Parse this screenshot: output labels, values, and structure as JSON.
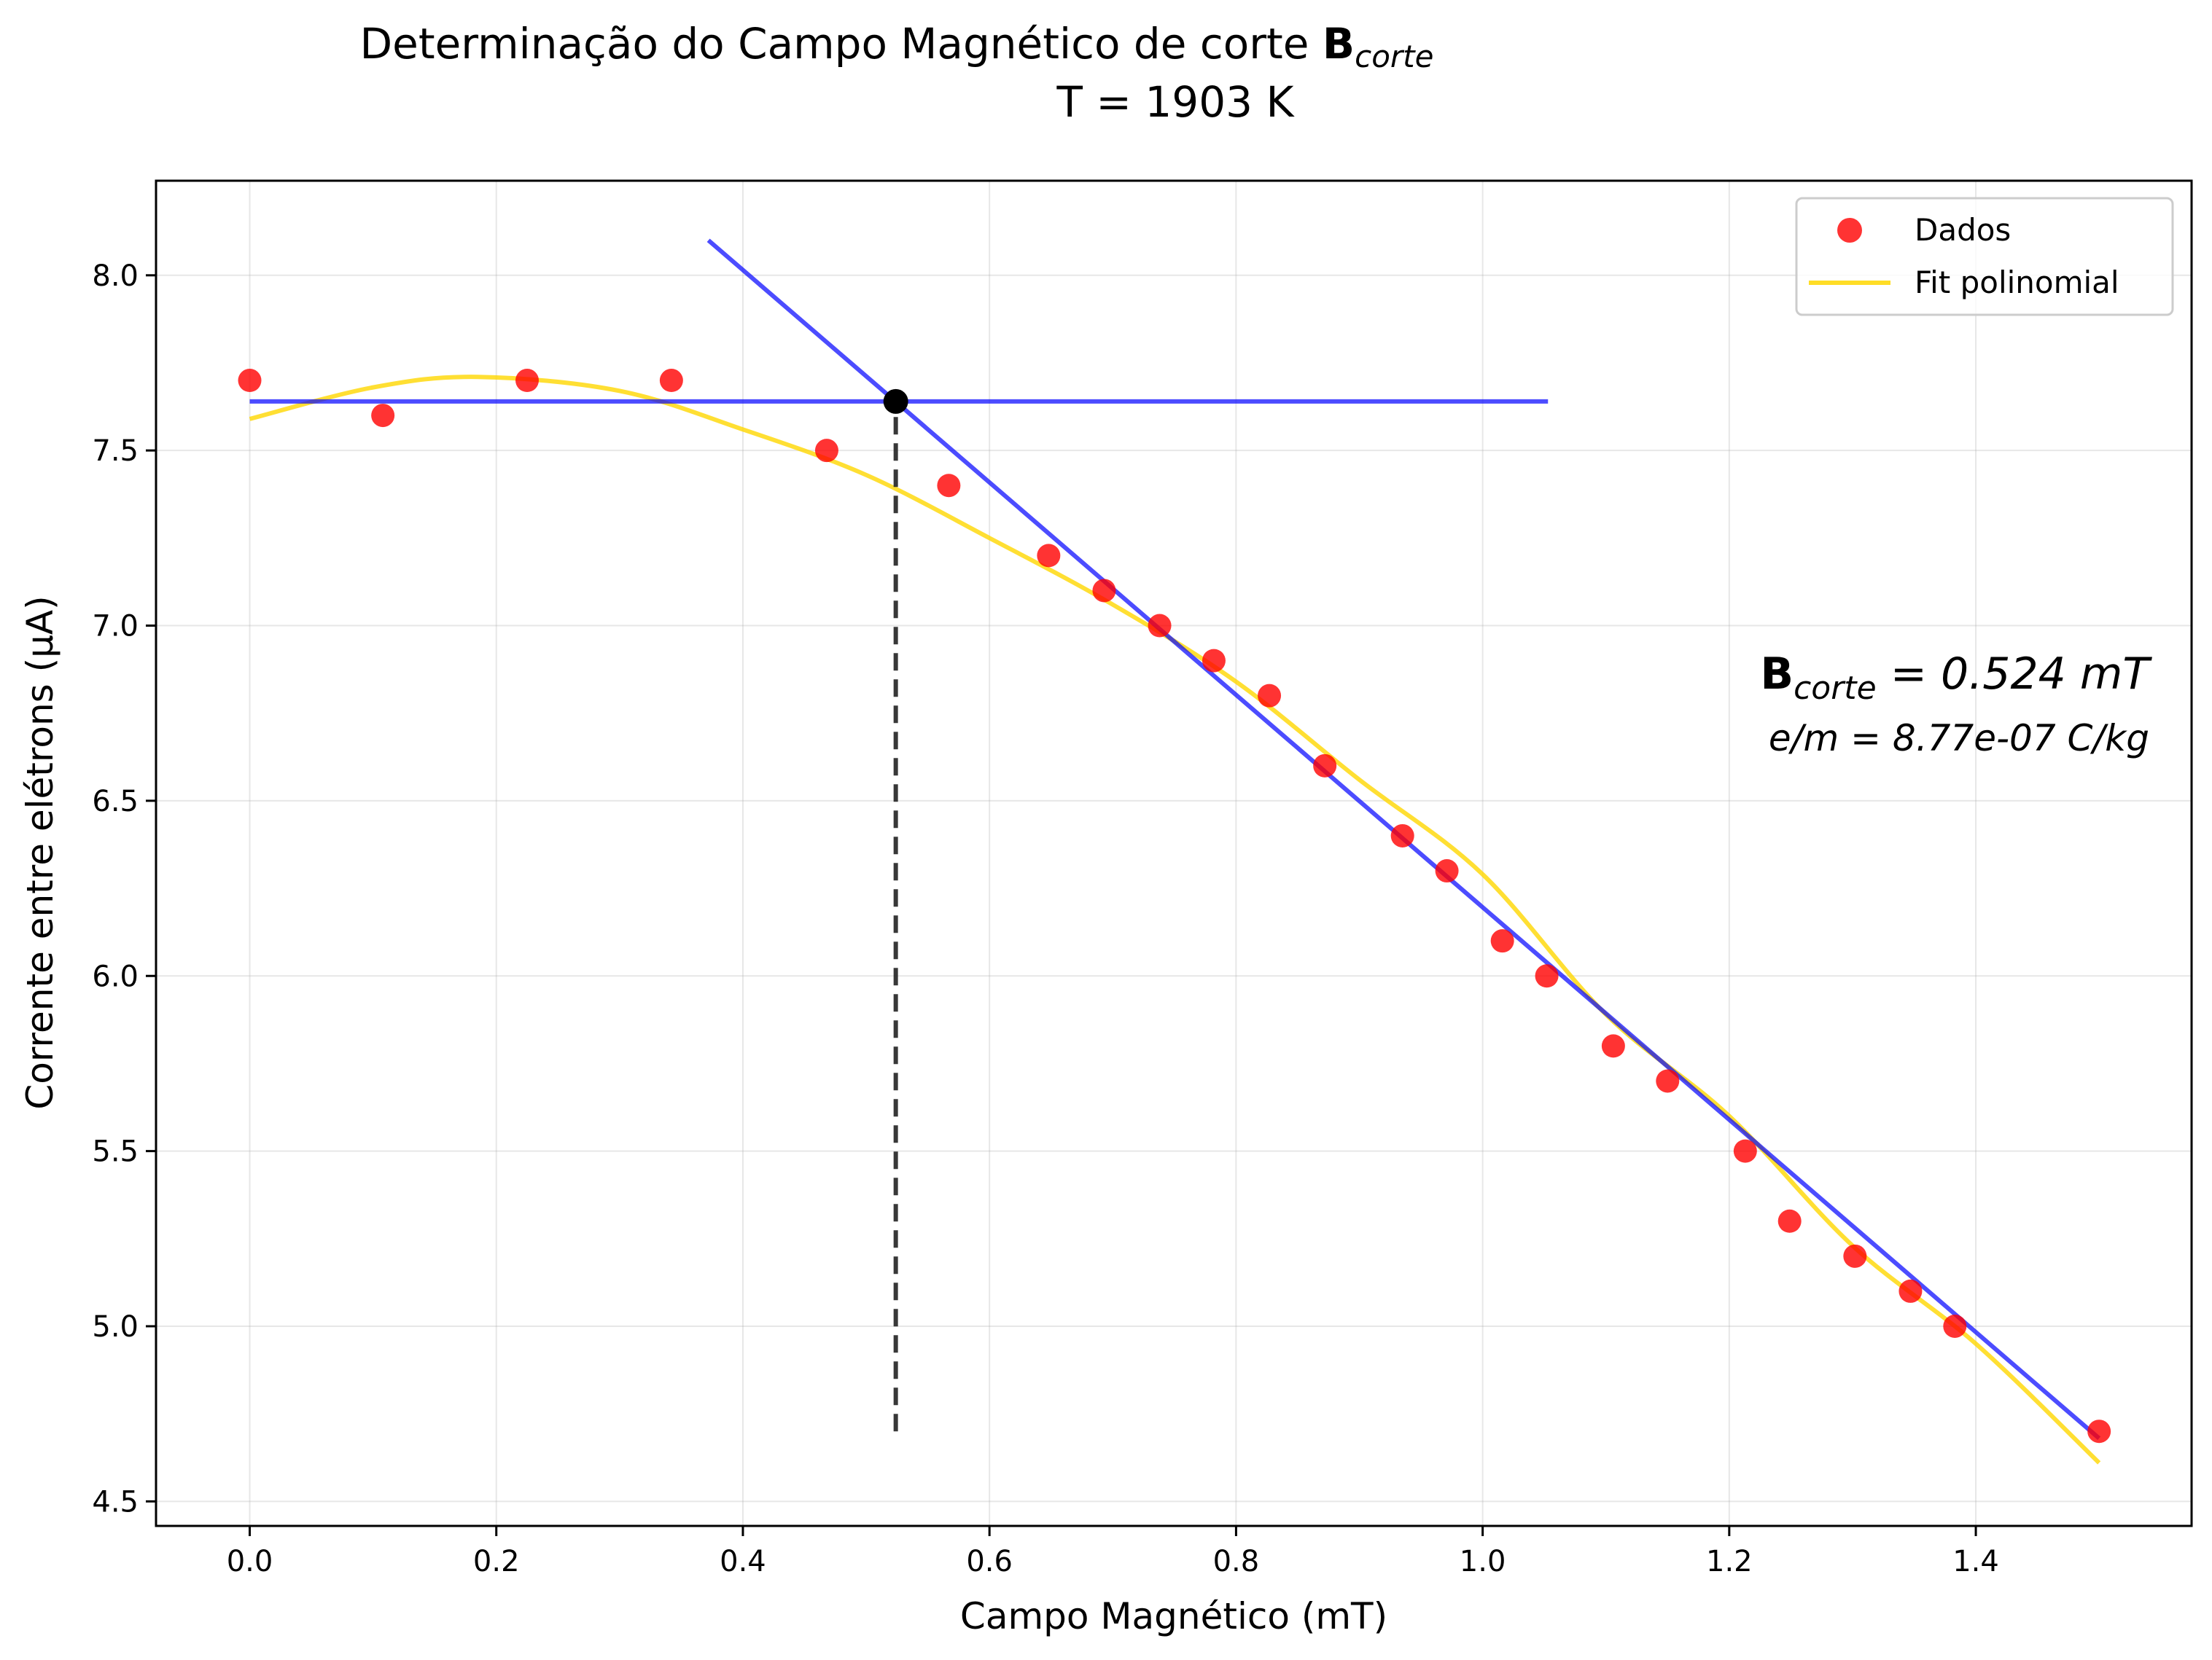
{
  "chart_data": {
    "type": "scatter",
    "title": "Determinação do Campo Magnético de corte ",
    "title_symbol": "B",
    "title_subscript": "corte",
    "subtitle": "T = 1903 K",
    "xlabel": "Campo Magnético (mT)",
    "ylabel": "Corrente entre elétrons (μA)",
    "xlim": [
      -0.076,
      1.575
    ],
    "ylim": [
      4.43,
      8.27
    ],
    "x_ticks": [
      0.0,
      0.2,
      0.4,
      0.6,
      0.8,
      1.0,
      1.2,
      1.4
    ],
    "x_tick_labels": [
      "0.0",
      "0.2",
      "0.4",
      "0.6",
      "0.8",
      "1.0",
      "1.2",
      "1.4"
    ],
    "y_ticks": [
      4.5,
      5.0,
      5.5,
      6.0,
      6.5,
      7.0,
      7.5,
      8.0
    ],
    "y_tick_labels": [
      "4.5",
      "5.0",
      "5.5",
      "6.0",
      "6.5",
      "7.0",
      "7.5",
      "8.0"
    ],
    "grid": true,
    "legend_position": "top-right",
    "legend": [
      "Dados",
      "Fit polinomial"
    ],
    "series": [
      {
        "name": "Dados",
        "type": "scatter",
        "color": "#ff0000",
        "x": [
          0.0,
          0.108,
          0.225,
          0.342,
          0.468,
          0.567,
          0.648,
          0.693,
          0.738,
          0.782,
          0.827,
          0.872,
          0.935,
          0.971,
          1.016,
          1.052,
          1.106,
          1.15,
          1.213,
          1.249,
          1.302,
          1.347,
          1.383,
          1.5
        ],
        "y": [
          7.7,
          7.6,
          7.7,
          7.7,
          7.5,
          7.4,
          7.2,
          7.1,
          7.0,
          6.9,
          6.8,
          6.6,
          6.4,
          6.3,
          6.1,
          6.0,
          5.8,
          5.7,
          5.5,
          5.3,
          5.2,
          5.1,
          5.0,
          4.7
        ]
      },
      {
        "name": "Fit polinomial",
        "type": "line",
        "color": "#ffd700",
        "x": [
          0.0,
          0.1,
          0.185,
          0.3,
          0.4,
          0.5,
          0.6,
          0.7,
          0.8,
          0.9,
          1.0,
          1.1,
          1.2,
          1.3,
          1.4,
          1.5
        ],
        "y": [
          7.59,
          7.68,
          7.71,
          7.67,
          7.56,
          7.43,
          7.25,
          7.06,
          6.84,
          6.56,
          6.29,
          5.89,
          5.6,
          5.23,
          4.95,
          4.61
        ]
      },
      {
        "type": "line",
        "color": "#0000ff",
        "x": [
          0.0,
          1.053
        ],
        "y": [
          7.64,
          7.64
        ]
      },
      {
        "type": "line",
        "color": "#0000ff",
        "x": [
          0.372,
          1.5
        ],
        "y": [
          8.1,
          4.68
        ]
      },
      {
        "type": "line",
        "style": "dashed",
        "color": "#222222",
        "x": [
          0.524,
          0.524
        ],
        "y": [
          4.7,
          7.64
        ]
      },
      {
        "type": "point",
        "color": "#000000",
        "x": [
          0.524
        ],
        "y": [
          7.64
        ]
      }
    ],
    "annotation": {
      "symbol": "B",
      "subscript": "corte",
      "value_text": " = 0.524 mT",
      "em_text": "e/m = 8.77e-07 C/kg"
    }
  }
}
